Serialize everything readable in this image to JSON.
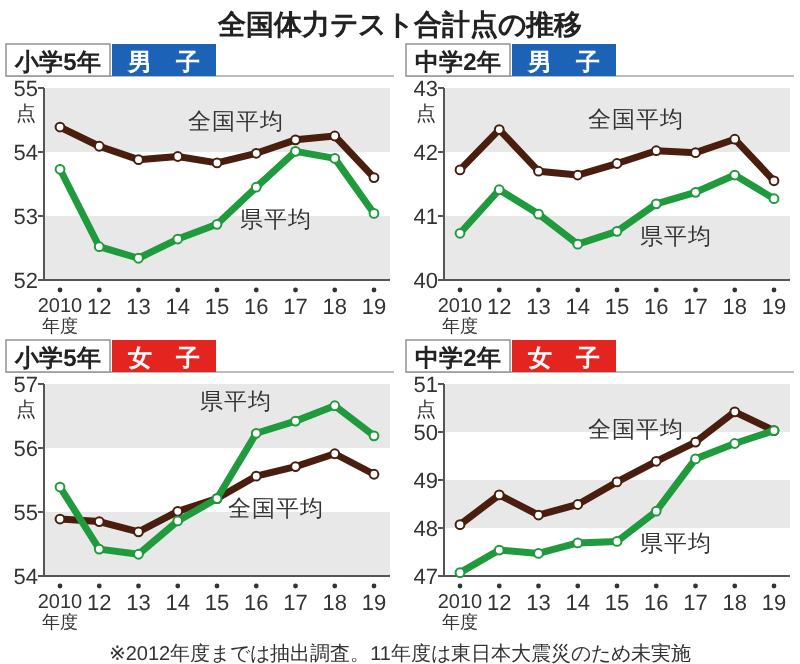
{
  "chart_data": [
    {
      "type": "line",
      "title": "小学5年",
      "subtitle": "男　子",
      "ylabel": "点",
      "annotations": [
        "全国体力テスト合計点の推移"
      ],
      "categories": [
        "2010年度",
        "12",
        "13",
        "14",
        "15",
        "16",
        "17",
        "18",
        "19"
      ],
      "ylim": [
        52,
        55
      ],
      "yticks": [
        52,
        53,
        54,
        55
      ],
      "marker": "circle",
      "line_style": "solid",
      "bands": [
        {
          "axis": "y",
          "from": 54,
          "to": 55,
          "color": "#e8e8e8"
        },
        {
          "axis": "y",
          "from": 52,
          "to": 53,
          "color": "#e8e8e8"
        }
      ],
      "series": [
        {
          "name": "全国平均",
          "color": "#4a1e0e",
          "values": [
            54.39,
            54.09,
            53.88,
            53.93,
            53.83,
            53.98,
            54.19,
            54.25,
            53.6
          ]
        },
        {
          "name": "県平均",
          "color": "#1f9a3c",
          "values": [
            53.73,
            52.52,
            52.34,
            52.64,
            52.87,
            53.45,
            54.01,
            53.9,
            53.04
          ]
        }
      ]
    },
    {
      "type": "line",
      "title": "中学2年",
      "subtitle": "男　子",
      "ylabel": "点",
      "categories": [
        "2010年度",
        "12",
        "13",
        "14",
        "15",
        "16",
        "17",
        "18",
        "19"
      ],
      "ylim": [
        40,
        43
      ],
      "yticks": [
        40,
        41,
        42,
        43
      ],
      "marker": "circle",
      "line_style": "solid",
      "bands": [
        {
          "axis": "y",
          "from": 42,
          "to": 43,
          "color": "#e8e8e8"
        },
        {
          "axis": "y",
          "from": 40,
          "to": 41,
          "color": "#e8e8e8"
        }
      ],
      "series": [
        {
          "name": "全国平均",
          "color": "#4a1e0e",
          "values": [
            41.72,
            42.35,
            41.7,
            41.64,
            41.82,
            42.02,
            41.99,
            42.2,
            41.55
          ]
        },
        {
          "name": "県平均",
          "color": "#1f9a3c",
          "values": [
            40.73,
            41.41,
            41.03,
            40.56,
            40.76,
            41.19,
            41.37,
            41.64,
            41.27
          ]
        }
      ]
    },
    {
      "type": "line",
      "title": "小学5年",
      "subtitle": "女　子",
      "ylabel": "点",
      "annotations": [
        "※2012年度までは抽出調査。11年度は東日本大震災のため未実施"
      ],
      "categories": [
        "2010年度",
        "12",
        "13",
        "14",
        "15",
        "16",
        "17",
        "18",
        "19"
      ],
      "ylim": [
        54,
        57
      ],
      "yticks": [
        54,
        55,
        56,
        57
      ],
      "marker": "circle",
      "line_style": "solid",
      "bands": [
        {
          "axis": "y",
          "from": 56,
          "to": 57,
          "color": "#e8e8e8"
        },
        {
          "axis": "y",
          "from": 54,
          "to": 55,
          "color": "#e8e8e8"
        }
      ],
      "series": [
        {
          "name": "全国平均",
          "color": "#4a1e0e",
          "values": [
            54.89,
            54.85,
            54.69,
            55.01,
            55.21,
            55.56,
            55.71,
            55.91,
            55.59
          ]
        },
        {
          "name": "県平均",
          "color": "#1f9a3c",
          "values": [
            55.39,
            54.42,
            54.34,
            54.86,
            55.21,
            56.23,
            56.42,
            56.66,
            56.19
          ]
        }
      ]
    },
    {
      "type": "line",
      "title": "中学2年",
      "subtitle": "女　子",
      "ylabel": "点",
      "categories": [
        "2010年度",
        "12",
        "13",
        "14",
        "15",
        "16",
        "17",
        "18",
        "19"
      ],
      "ylim": [
        47,
        51
      ],
      "yticks": [
        47,
        48,
        49,
        50,
        51
      ],
      "marker": "circle",
      "line_style": "solid",
      "bands": [
        {
          "axis": "y",
          "from": 50,
          "to": 51,
          "color": "#e8e8e8"
        },
        {
          "axis": "y",
          "from": 48,
          "to": 49,
          "color": "#e8e8e8"
        }
      ],
      "series": [
        {
          "name": "全国平均",
          "color": "#4a1e0e",
          "values": [
            48.07,
            48.69,
            48.27,
            48.49,
            48.96,
            49.39,
            49.79,
            50.42,
            50.03
          ]
        },
        {
          "name": "県平均",
          "color": "#1f9a3c",
          "values": [
            47.07,
            47.54,
            47.47,
            47.69,
            47.72,
            48.35,
            49.44,
            49.76,
            50.03
          ]
        }
      ]
    }
  ]
}
